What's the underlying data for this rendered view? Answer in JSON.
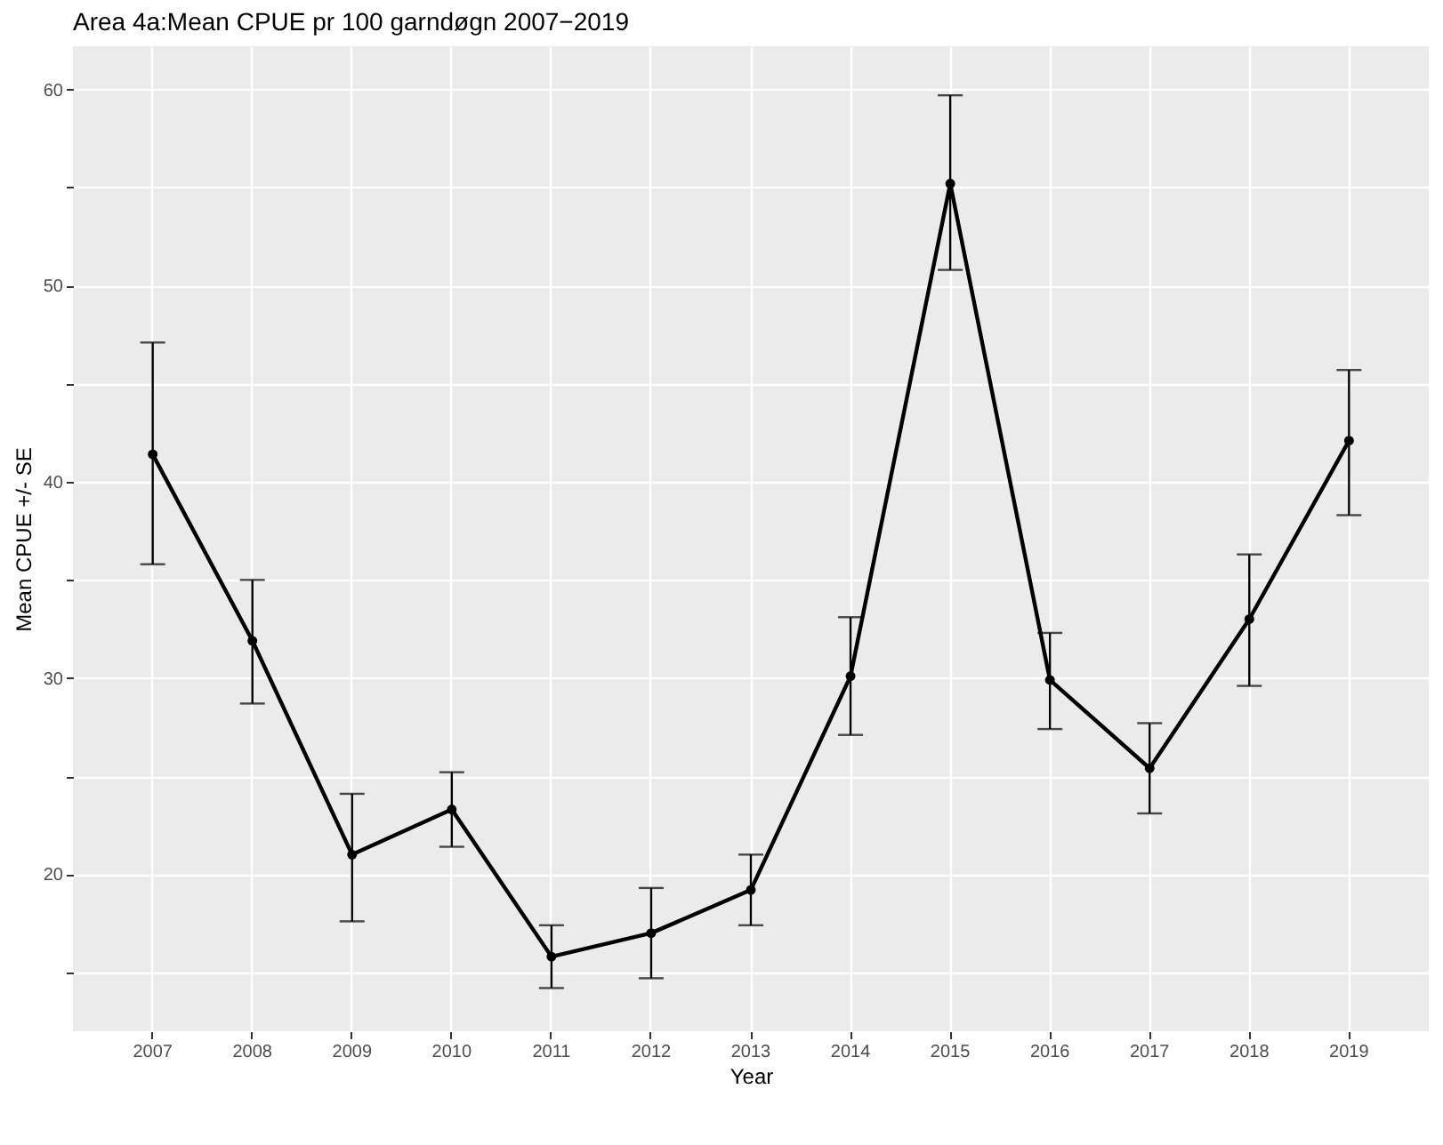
{
  "chart_data": {
    "type": "line",
    "title": "Area 4a:Mean CPUE pr 100 garndøgn 2007−2019",
    "xlabel": "Year",
    "ylabel": "Mean CPUE +/- SE",
    "categories": [
      "2007",
      "2008",
      "2009",
      "2010",
      "2011",
      "2012",
      "2013",
      "2014",
      "2015",
      "2016",
      "2017",
      "2018",
      "2019"
    ],
    "series": [
      {
        "color": "#000000",
        "values": [
          41.4,
          31.9,
          21.0,
          23.3,
          15.8,
          17.0,
          19.2,
          30.1,
          55.2,
          29.9,
          25.4,
          33.0,
          42.1
        ],
        "errors": [
          [
            35.8,
            47.1
          ],
          [
            28.7,
            35.0
          ],
          [
            17.6,
            24.1
          ],
          [
            21.4,
            25.2
          ],
          [
            14.2,
            17.4
          ],
          [
            14.7,
            19.3
          ],
          [
            17.4,
            21.0
          ],
          [
            27.1,
            33.1
          ],
          [
            50.8,
            59.7
          ],
          [
            27.4,
            32.3
          ],
          [
            23.1,
            27.7
          ],
          [
            29.6,
            36.3
          ],
          [
            38.3,
            45.7
          ]
        ]
      }
    ],
    "ylim": [
      12,
      62.2
    ],
    "yticks": [
      {
        "value": 15,
        "label": null
      },
      20,
      {
        "value": 25,
        "label": null
      },
      30,
      {
        "value": 35,
        "label": null
      },
      40,
      {
        "value": 45,
        "label": null
      },
      50,
      {
        "value": 55,
        "label": null
      },
      60
    ],
    "grid": true,
    "marker": "circle",
    "line_style": "solid"
  }
}
